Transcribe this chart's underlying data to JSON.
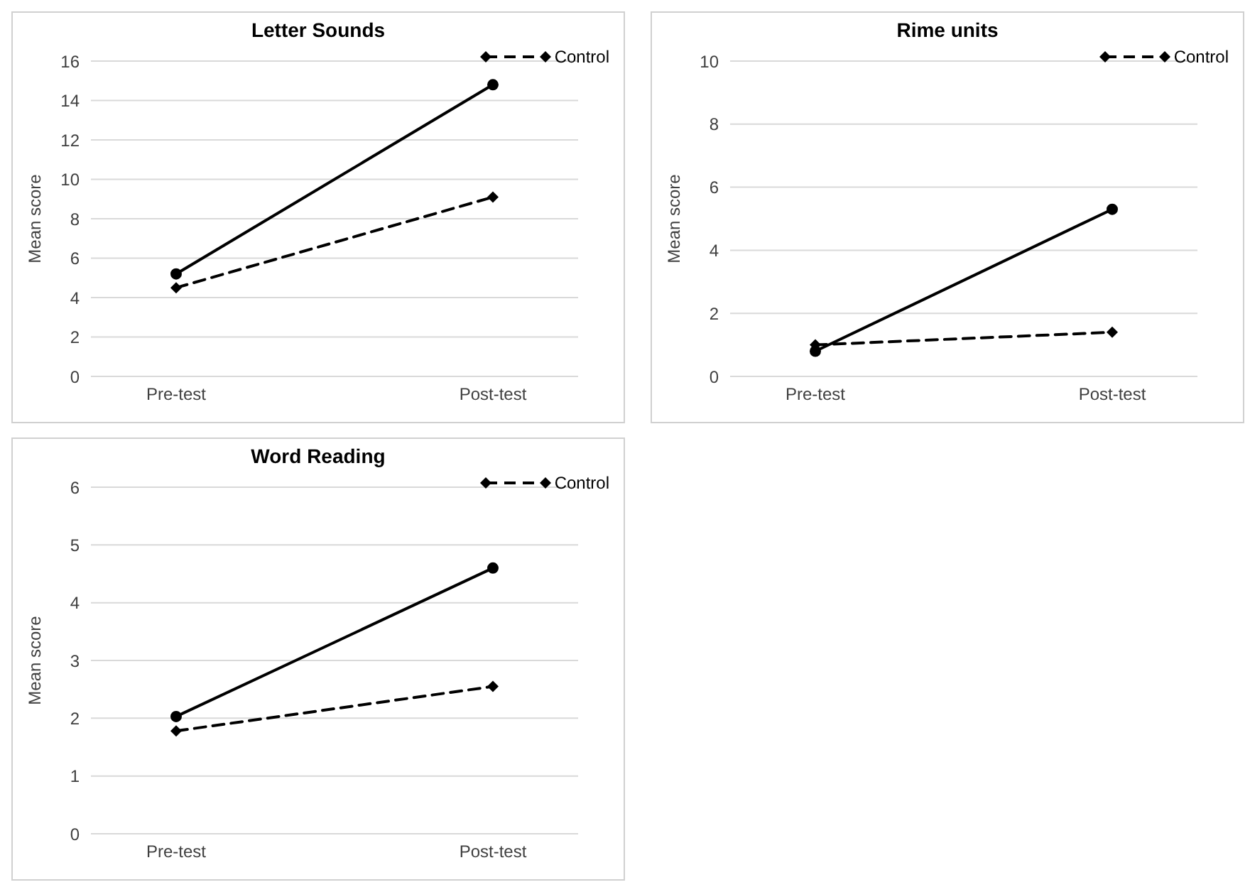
{
  "chart_data": [
    {
      "type": "line",
      "title": "Letter Sounds",
      "ylabel": "Mean score",
      "categories": [
        "Pre-test",
        "Post-test"
      ],
      "ylim": [
        0,
        16
      ],
      "yticks": [
        0,
        2,
        4,
        6,
        8,
        10,
        12,
        14,
        16
      ],
      "grid": "y",
      "legend": "top right",
      "series": [
        {
          "name": "Control",
          "color": "#000000",
          "values": [
            4.5,
            9.1
          ],
          "marker": "diamond",
          "line_style": "dashed"
        },
        {
          "color": "#000000",
          "values": [
            5.2,
            14.8
          ],
          "marker": "circle",
          "line_style": "solid"
        }
      ]
    },
    {
      "type": "line",
      "title": "Rime units",
      "ylabel": "Mean score",
      "categories": [
        "Pre-test",
        "Post-test"
      ],
      "ylim": [
        0,
        10
      ],
      "yticks": [
        0,
        2,
        4,
        6,
        8,
        10
      ],
      "grid": "y",
      "legend": "top right",
      "series": [
        {
          "name": "Control",
          "color": "#000000",
          "values": [
            1.0,
            1.4
          ],
          "marker": "diamond",
          "line_style": "dashed"
        },
        {
          "color": "#000000",
          "values": [
            0.8,
            5.3
          ],
          "marker": "circle",
          "line_style": "solid"
        }
      ]
    },
    {
      "type": "line",
      "title": "Word Reading",
      "ylabel": "Mean score",
      "categories": [
        "Pre-test",
        "Post-test"
      ],
      "ylim": [
        0,
        6
      ],
      "yticks": [
        0,
        1,
        2,
        3,
        4,
        5,
        6
      ],
      "grid": "y",
      "legend": "top right",
      "series": [
        {
          "name": "Control",
          "color": "#000000",
          "values": [
            1.78,
            2.55
          ],
          "marker": "diamond",
          "line_style": "dashed"
        },
        {
          "color": "#000000",
          "values": [
            2.03,
            4.6
          ],
          "marker": "circle",
          "line_style": "solid"
        }
      ]
    }
  ]
}
